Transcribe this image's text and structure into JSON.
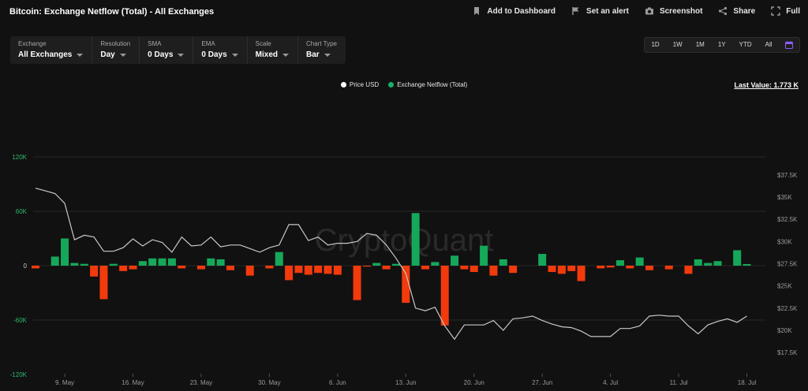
{
  "header": {
    "title": "Bitcoin: Exchange Netflow (Total) - All Exchanges",
    "actions": [
      {
        "label": "Add to Dashboard",
        "icon": "bookmark-icon"
      },
      {
        "label": "Set an alert",
        "icon": "alert-icon"
      },
      {
        "label": "Screenshot",
        "icon": "camera-icon"
      },
      {
        "label": "Share",
        "icon": "share-icon"
      },
      {
        "label": "Full",
        "icon": "fullscreen-icon"
      }
    ]
  },
  "controls": [
    {
      "label": "Exchange",
      "value": "All Exchanges"
    },
    {
      "label": "Resolution",
      "value": "Day"
    },
    {
      "label": "SMA",
      "value": "0 Days"
    },
    {
      "label": "EMA",
      "value": "0 Days"
    },
    {
      "label": "Scale",
      "value": "Mixed"
    },
    {
      "label": "Chart Type",
      "value": "Bar"
    }
  ],
  "ranges": [
    "1D",
    "1W",
    "1M",
    "1Y",
    "YTD",
    "All"
  ],
  "last_value": "Last Value: 1.773 K",
  "watermark": "CryptoQuant",
  "colors": {
    "price": "#c8c8c8",
    "inflow": "#16a85a",
    "outflow": "#f23a0c",
    "accent": "#8b5cf6",
    "legend_price": "#ffffff",
    "legend_netflow": "#17b169",
    "left_axis": "#2fb56e"
  },
  "chart_data": {
    "type": "bar",
    "legend": [
      "Price USD",
      "Exchange Netflow (Total)"
    ],
    "x_tick_labels": [
      "9. May",
      "16. May",
      "23. May",
      "30. May",
      "6. Jun",
      "13. Jun",
      "20. Jun",
      "27. Jun",
      "4. Jul",
      "11. Jul",
      "18. Jul"
    ],
    "left_axis": {
      "ticks": [
        120000,
        60000,
        0,
        -60000,
        -120000
      ],
      "tick_labels": [
        "120K",
        "60K",
        "0",
        "-60K",
        "-120K"
      ],
      "ylim": [
        -120000,
        120000
      ]
    },
    "right_axis": {
      "ticks": [
        37500,
        35000,
        32500,
        30000,
        27500,
        25000,
        22500,
        20000,
        17500
      ],
      "tick_labels": [
        "$37.5K",
        "$35K",
        "$32.5K",
        "$30K",
        "$27.5K",
        "$25K",
        "$22.5K",
        "$20K",
        "$17.5K"
      ],
      "ylim": [
        17500,
        38500
      ]
    },
    "grid": true,
    "dates": [
      "5/6",
      "5/7",
      "5/8",
      "5/9",
      "5/10",
      "5/11",
      "5/12",
      "5/13",
      "5/14",
      "5/15",
      "5/16",
      "5/17",
      "5/18",
      "5/19",
      "5/20",
      "5/21",
      "5/22",
      "5/23",
      "5/24",
      "5/25",
      "5/26",
      "5/27",
      "5/28",
      "5/29",
      "5/30",
      "5/31",
      "6/1",
      "6/2",
      "6/3",
      "6/4",
      "6/5",
      "6/6",
      "6/7",
      "6/8",
      "6/9",
      "6/10",
      "6/11",
      "6/12",
      "6/13",
      "6/14",
      "6/15",
      "6/16",
      "6/17",
      "6/18",
      "6/19",
      "6/20",
      "6/21",
      "6/22",
      "6/23",
      "6/24",
      "6/25",
      "6/26",
      "6/27",
      "6/28",
      "6/29",
      "6/30",
      "7/1",
      "7/2",
      "7/3",
      "7/4",
      "7/5",
      "7/6",
      "7/7",
      "7/8",
      "7/9",
      "7/10",
      "7/11",
      "7/12",
      "7/13",
      "7/14",
      "7/15",
      "7/16",
      "7/17",
      "7/18"
    ],
    "series": [
      {
        "name": "Exchange Netflow (Total)",
        "axis": "left",
        "values": [
          -3000,
          0,
          10000,
          30000,
          3000,
          2000,
          -12000,
          -37000,
          2000,
          -6000,
          -4000,
          5000,
          8000,
          8000,
          8000,
          -3000,
          0,
          -4000,
          8000,
          7000,
          -5000,
          0,
          -11000,
          0,
          -3000,
          15000,
          -16000,
          -8000,
          -10000,
          -8000,
          -9000,
          -10000,
          0,
          -38000,
          -1000,
          3000,
          -4000,
          2000,
          -41000,
          58000,
          -4000,
          4000,
          -66000,
          11000,
          -4000,
          -7000,
          22000,
          -11000,
          7000,
          -8000,
          0,
          0,
          13000,
          -7000,
          -9000,
          -6000,
          -17000,
          0,
          -3000,
          -2000,
          6000,
          -3000,
          9000,
          -5000,
          0,
          -4000,
          0,
          -9000,
          7000,
          3000,
          5000,
          0,
          17000,
          1773
        ]
      },
      {
        "name": "Price USD",
        "axis": "right",
        "values": [
          36000,
          35700,
          35400,
          34300,
          30200,
          30700,
          30500,
          28900,
          28900,
          29300,
          30300,
          29500,
          30200,
          29900,
          28800,
          30500,
          29500,
          29600,
          30500,
          29400,
          29600,
          29600,
          29200,
          28800,
          29300,
          29600,
          31900,
          31900,
          30100,
          30500,
          29600,
          29800,
          29800,
          30000,
          30900,
          30700,
          29600,
          28100,
          26400,
          22500,
          22200,
          22600,
          20500,
          19000,
          20600,
          20600,
          20600,
          21100,
          20000,
          21300,
          21400,
          21600,
          21100,
          20700,
          20400,
          20300,
          19900,
          19300,
          19300,
          19300,
          20200,
          20200,
          20500,
          21600,
          21700,
          21600,
          21600,
          20500,
          19600,
          20600,
          21000,
          21300,
          20900,
          21600
        ]
      }
    ]
  }
}
